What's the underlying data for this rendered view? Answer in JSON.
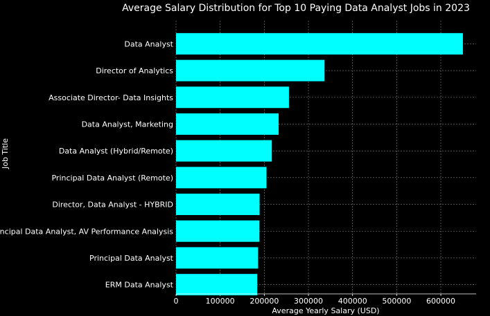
{
  "chart_data": {
    "type": "bar",
    "orientation": "horizontal",
    "title": "Average Salary Distribution for Top 10 Paying Data Analyst Jobs in 2023",
    "xlabel": "Average Yearly Salary (USD)",
    "ylabel": "Job Title",
    "categories": [
      "Data Analyst",
      "Director of Analytics",
      "Associate Director- Data Insights",
      "Data Analyst, Marketing",
      "Data Analyst (Hybrid/Remote)",
      "Principal Data Analyst (Remote)",
      "Director, Data Analyst - HYBRID",
      "Principal Data Analyst, AV Performance Analysis",
      "Principal Data Analyst",
      "ERM Data Analyst"
    ],
    "values": [
      650000,
      336500,
      255830,
      232423,
      217000,
      205000,
      189309,
      189000,
      186000,
      184000
    ],
    "xlim": [
      0,
      680000
    ],
    "xticks": [
      0,
      100000,
      200000,
      300000,
      400000,
      500000,
      600000
    ],
    "xtick_labels": [
      "0",
      "100000",
      "200000",
      "300000",
      "400000",
      "500000",
      "600000"
    ],
    "grid": true,
    "bar_color": "#00ffff",
    "background_color": "#000000",
    "text_color": "#ffffff",
    "grid_color": "#888888"
  }
}
